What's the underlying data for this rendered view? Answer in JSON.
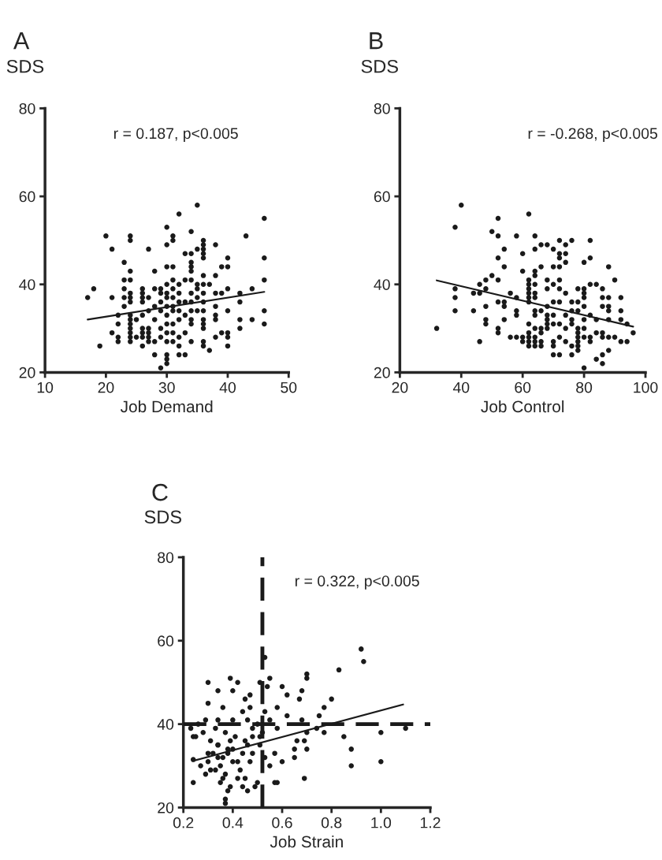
{
  "chart_data": [
    {
      "type": "scatter",
      "title": "A",
      "ylabel": "SDS",
      "xlabel": "Job Demand",
      "xlim": [
        10,
        50
      ],
      "xticks": [
        10,
        20,
        30,
        40,
        50
      ],
      "ylim": [
        20,
        80
      ],
      "yticks": [
        20,
        40,
        60,
        80
      ],
      "grid": false,
      "legend": false,
      "annotations": [
        "r = 0.187, p<0.005"
      ],
      "series": [
        {
          "color": "#1a1a1a",
          "marker": "circle",
          "x": [
            17,
            18,
            19,
            20,
            21,
            21,
            21,
            22,
            22,
            22,
            22,
            23,
            23,
            23,
            23,
            23,
            24,
            24,
            24,
            24,
            24,
            24,
            24,
            24,
            24,
            24,
            24,
            24,
            24,
            24,
            25,
            25,
            26,
            26,
            26,
            26,
            26,
            26,
            26,
            26,
            26,
            27,
            27,
            27,
            27,
            27,
            27,
            27,
            28,
            28,
            28,
            28,
            28,
            28,
            29,
            29,
            29,
            29,
            29,
            29,
            29,
            30,
            30,
            30,
            30,
            30,
            30,
            30,
            30,
            30,
            30,
            30,
            30,
            30,
            30,
            31,
            31,
            31,
            31,
            31,
            31,
            31,
            31,
            31,
            31,
            31,
            32,
            32,
            32,
            32,
            32,
            32,
            32,
            32,
            32,
            33,
            33,
            33,
            33,
            33,
            33,
            34,
            34,
            34,
            34,
            34,
            34,
            34,
            34,
            34,
            34,
            34,
            34,
            35,
            35,
            35,
            35,
            35,
            35,
            36,
            36,
            36,
            36,
            36,
            36,
            36,
            36,
            36,
            36,
            36,
            36,
            36,
            36,
            36,
            37,
            37,
            38,
            38,
            38,
            38,
            38,
            38,
            38,
            39,
            39,
            39,
            40,
            40,
            40,
            40,
            40,
            40,
            40,
            42,
            42,
            42,
            42,
            43,
            44,
            44,
            46,
            46,
            46,
            46,
            46
          ],
          "values": [
            37,
            39,
            26,
            51,
            48,
            37,
            29,
            33,
            31,
            28,
            27,
            45,
            41,
            39,
            37,
            35,
            51,
            50,
            43,
            41,
            38,
            37,
            36,
            33,
            32,
            31,
            30,
            29,
            28,
            27,
            32,
            28,
            39,
            38,
            37,
            36,
            33,
            30,
            29,
            28,
            26,
            48,
            37,
            34,
            30,
            29,
            28,
            27,
            43,
            39,
            35,
            32,
            27,
            24,
            39,
            38,
            36,
            34,
            30,
            28,
            21,
            53,
            49,
            44,
            40,
            38,
            37,
            35,
            33,
            31,
            29,
            27,
            24,
            23,
            22,
            51,
            50,
            44,
            41,
            39,
            37,
            35,
            34,
            31,
            29,
            27,
            56,
            40,
            38,
            36,
            34,
            32,
            28,
            26,
            24,
            47,
            41,
            36,
            33,
            29,
            24,
            52,
            47,
            45,
            44,
            43,
            41,
            38,
            36,
            34,
            32,
            31,
            27,
            58,
            48,
            40,
            39,
            37,
            34,
            50,
            49,
            48,
            47,
            46,
            42,
            40,
            38,
            36,
            34,
            32,
            31,
            30,
            27,
            26,
            40,
            25,
            49,
            42,
            38,
            35,
            33,
            32,
            28,
            44,
            38,
            29,
            46,
            44,
            39,
            34,
            29,
            28,
            26,
            38,
            36,
            32,
            30,
            51,
            39,
            32,
            55,
            46,
            41,
            34,
            31
          ]
        },
        {
          "type": "line",
          "color": "#1a1a1a",
          "marker": "none",
          "line_style": "solid",
          "x": [
            17,
            46
          ],
          "values": [
            32,
            38.3
          ]
        }
      ]
    },
    {
      "type": "scatter",
      "title": "B",
      "ylabel": "SDS",
      "xlabel": "Job Control",
      "xlim": [
        20,
        100
      ],
      "xticks": [
        20,
        40,
        60,
        80,
        100
      ],
      "ylim": [
        20,
        80
      ],
      "yticks": [
        20,
        40,
        60,
        80
      ],
      "grid": false,
      "legend": false,
      "annotations": [
        "r = -0.268, p<0.005"
      ],
      "series": [
        {
          "color": "#1a1a1a",
          "marker": "circle",
          "x": [
            32,
            38,
            38,
            38,
            38,
            40,
            44,
            44,
            46,
            46,
            46,
            48,
            48,
            48,
            48,
            48,
            50,
            50,
            52,
            52,
            52,
            52,
            52,
            52,
            52,
            54,
            54,
            54,
            54,
            54,
            56,
            56,
            58,
            58,
            58,
            58,
            58,
            60,
            60,
            60,
            60,
            62,
            62,
            62,
            62,
            62,
            62,
            62,
            62,
            62,
            62,
            62,
            62,
            64,
            64,
            64,
            64,
            64,
            64,
            64,
            64,
            64,
            64,
            64,
            64,
            64,
            66,
            66,
            66,
            66,
            66,
            66,
            66,
            68,
            68,
            68,
            68,
            68,
            68,
            68,
            68,
            70,
            70,
            70,
            70,
            70,
            70,
            70,
            70,
            70,
            72,
            72,
            72,
            72,
            72,
            72,
            72,
            72,
            72,
            72,
            74,
            74,
            74,
            74,
            74,
            74,
            74,
            76,
            76,
            76,
            76,
            76,
            76,
            76,
            78,
            78,
            78,
            78,
            78,
            78,
            78,
            78,
            78,
            80,
            80,
            80,
            80,
            80,
            80,
            80,
            80,
            80,
            82,
            82,
            82,
            82,
            82,
            82,
            84,
            84,
            84,
            84,
            86,
            86,
            86,
            86,
            86,
            86,
            86,
            88,
            88,
            88,
            88,
            88,
            88,
            88,
            90,
            90,
            92,
            92,
            92,
            92,
            94,
            94,
            96
          ],
          "values": [
            30,
            53,
            39,
            37,
            34,
            58,
            38,
            34,
            40,
            38,
            27,
            41,
            39,
            35,
            32,
            31,
            42,
            52,
            55,
            51,
            46,
            41,
            36,
            30,
            29,
            48,
            44,
            36,
            35,
            32,
            38,
            28,
            51,
            37,
            34,
            33,
            28,
            47,
            43,
            28,
            27,
            56,
            41,
            40,
            39,
            38,
            37,
            36,
            31,
            29,
            28,
            27,
            26,
            51,
            48,
            43,
            42,
            40,
            38,
            37,
            34,
            33,
            30,
            28,
            27,
            26,
            49,
            44,
            34,
            30,
            29,
            27,
            26,
            49,
            41,
            39,
            35,
            33,
            32,
            31,
            30,
            48,
            44,
            40,
            36,
            33,
            31,
            27,
            26,
            24,
            50,
            47,
            46,
            44,
            41,
            39,
            36,
            31,
            28,
            24,
            49,
            47,
            45,
            38,
            33,
            30,
            27,
            50,
            36,
            34,
            32,
            31,
            26,
            24,
            39,
            36,
            34,
            30,
            29,
            28,
            27,
            26,
            25,
            45,
            39,
            38,
            37,
            35,
            32,
            30,
            28,
            21,
            50,
            46,
            40,
            33,
            28,
            27,
            40,
            32,
            29,
            23,
            39,
            37,
            35,
            29,
            28,
            24,
            22,
            44,
            37,
            35,
            34,
            32,
            28,
            25,
            41,
            28,
            37,
            34,
            32,
            27,
            31,
            27,
            29
          ]
        },
        {
          "type": "line",
          "color": "#1a1a1a",
          "marker": "none",
          "line_style": "solid",
          "x": [
            32,
            96
          ],
          "values": [
            40.9,
            30.4
          ]
        }
      ]
    },
    {
      "type": "scatter",
      "title": "C",
      "ylabel": "SDS",
      "xlabel": "Job Strain",
      "xlim": [
        0.2,
        1.2
      ],
      "xticks": [
        {
          "value": 0.2,
          "label": "0.2"
        },
        {
          "value": 0.4,
          "label": "0.4"
        },
        {
          "value": 0.6,
          "label": "0.6"
        },
        {
          "value": 0.8,
          "label": "0.8"
        },
        {
          "value": 1.0,
          "label": "1.0"
        },
        {
          "value": 1.2,
          "label": "1.2"
        }
      ],
      "ylim": [
        20,
        80
      ],
      "yticks": [
        20,
        40,
        60,
        80
      ],
      "grid": false,
      "legend": false,
      "annotations": [
        "r = 0.322, p<0.005"
      ],
      "ref_lines": [
        {
          "axis": "x",
          "value": 0.52,
          "color": "#1a1a1a",
          "line_style": "dashed"
        },
        {
          "axis": "y",
          "value": 40,
          "color": "#1a1a1a",
          "line_style": "dashed"
        }
      ],
      "series": [
        {
          "color": "#1a1a1a",
          "marker": "circle",
          "x": [
            0.23,
            0.24,
            0.25,
            0.24,
            0.24,
            0.29,
            0.3,
            0.3,
            0.3,
            0.31,
            0.33,
            0.34,
            0.34,
            0.34,
            0.34,
            0.35,
            0.36,
            0.38,
            0.37,
            0.37,
            0.37,
            0.38,
            0.39,
            0.4,
            0.4,
            0.4,
            0.42,
            0.42,
            0.44,
            0.45,
            0.45,
            0.46,
            0.44,
            0.46,
            0.47,
            0.47,
            0.48,
            0.48,
            0.5,
            0.49,
            0.51,
            0.51,
            0.51,
            0.53,
            0.53,
            0.54,
            0.55,
            0.55,
            0.55,
            0.57,
            0.57,
            0.58,
            0.58,
            0.58,
            0.6,
            0.6,
            0.62,
            0.62,
            0.65,
            0.65,
            0.67,
            0.66,
            0.68,
            0.68,
            0.69,
            0.69,
            0.7,
            0.7,
            0.7,
            0.7,
            0.74,
            0.75,
            0.77,
            0.77,
            0.8,
            0.83,
            0.85,
            0.88,
            0.88,
            0.92,
            0.93,
            1.0,
            1.0,
            1.1,
            0.35,
            0.36,
            0.38,
            0.4,
            0.42,
            0.33,
            0.37,
            0.39,
            0.41,
            0.44,
            0.46,
            0.34,
            0.3,
            0.32,
            0.43,
            0.47,
            0.36,
            0.39,
            0.31,
            0.28,
            0.27,
            0.45,
            0.48,
            0.29,
            0.26,
            0.5,
            0.52,
            0.53
          ],
          "values": [
            39,
            37,
            37,
            26,
            31.5,
            28,
            50,
            45,
            33,
            29,
            39,
            48,
            41,
            35,
            32,
            26,
            44,
            24,
            22,
            21,
            38,
            34,
            51,
            48,
            41,
            31,
            50,
            27,
            43,
            36,
            46,
            41,
            25,
            24,
            47,
            44,
            39,
            33,
            26,
            25,
            35,
            37,
            50,
            56,
            43,
            49,
            51,
            41,
            30,
            26,
            33,
            44,
            39,
            26,
            49,
            31,
            42,
            47,
            34,
            32,
            46,
            36,
            48,
            41,
            36,
            27,
            51,
            52,
            38,
            34,
            39,
            42,
            44,
            38,
            46,
            53,
            37,
            34,
            30,
            58,
            55,
            38,
            31,
            39,
            30,
            32,
            33,
            34,
            31,
            29,
            28,
            36,
            37,
            33,
            35,
            35,
            31,
            33,
            29,
            31,
            27,
            25,
            36,
            38,
            30,
            27,
            37,
            41,
            40,
            40,
            38,
            32
          ]
        },
        {
          "type": "line",
          "color": "#1a1a1a",
          "marker": "none",
          "line_style": "solid",
          "x": [
            0.24,
            1.09
          ],
          "values": [
            31.2,
            44.7
          ]
        }
      ]
    }
  ]
}
